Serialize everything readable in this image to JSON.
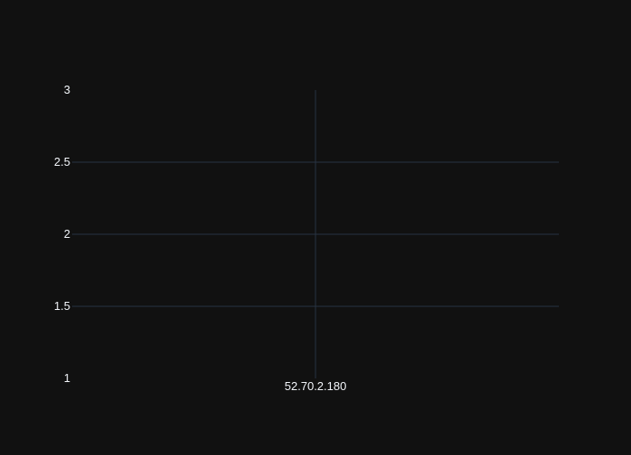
{
  "chart_data": {
    "type": "scatter",
    "title": "",
    "xlabel": "",
    "ylabel": "",
    "categories": [
      "52.70.2.180"
    ],
    "series": [
      {
        "values": []
      }
    ],
    "ylim": [
      1,
      3
    ],
    "y_ticks": [
      "1",
      "1.5",
      "2",
      "2.5",
      "3"
    ],
    "grid": true,
    "legend": "none",
    "colors": {
      "background": "#111111",
      "grid": "#283442",
      "text": "#f2f5fa"
    }
  }
}
